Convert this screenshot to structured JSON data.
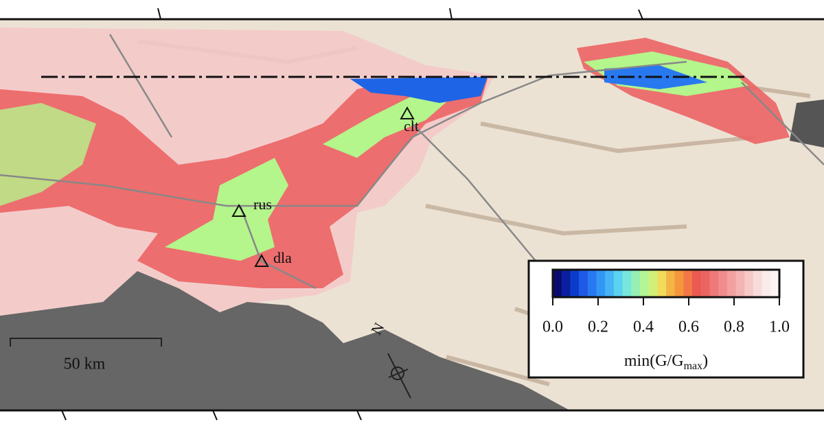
{
  "stations": [
    {
      "label": "clt"
    },
    {
      "label": "rus"
    },
    {
      "label": "dla"
    }
  ],
  "scale_bar": {
    "label": "50 km"
  },
  "north_arrow": {
    "label": "N"
  },
  "colorbar": {
    "range": [
      0,
      1
    ],
    "colors": [
      "#0a0a6e",
      "#0a1ea0",
      "#0a3cc8",
      "#1e5ae6",
      "#2878f0",
      "#3296f5",
      "#46b4f5",
      "#5ad2f0",
      "#78e6dc",
      "#96f0b4",
      "#b4f596",
      "#d2f078",
      "#f0dc5a",
      "#f5b446",
      "#f5963c",
      "#f07846",
      "#eb5a50",
      "#eb6464",
      "#ef7878",
      "#f08c8c",
      "#f2a0a0",
      "#f4b4b4",
      "#f6c8c8",
      "#f8dcdc",
      "#faeaea",
      "#fcf4f4"
    ],
    "ticks": [
      {
        "value": 0,
        "label": "0.0"
      },
      {
        "value": 0.2,
        "label": "0.2"
      },
      {
        "value": 0.4,
        "label": "0.4"
      },
      {
        "value": 0.6,
        "label": "0.6"
      },
      {
        "value": 0.8,
        "label": "0.8"
      },
      {
        "value": 1,
        "label": "1.0"
      }
    ],
    "title": "min(G/G",
    "title_sub": "max",
    "title_end": ")"
  }
}
